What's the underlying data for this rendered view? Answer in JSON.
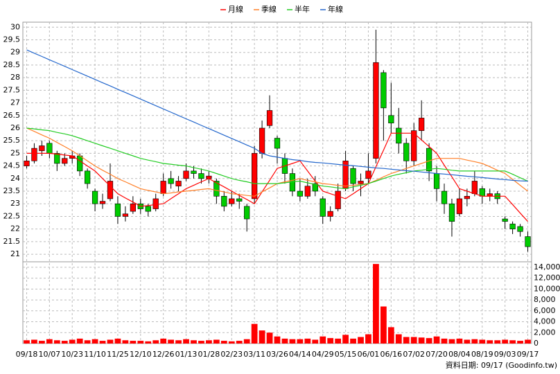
{
  "chart_data": {
    "type": "candlestick",
    "grid": true,
    "footer": "資料日期: 09/17   (Goodinfo.tw)",
    "categories": [
      "09/18",
      null,
      null,
      "10/07",
      null,
      null,
      "10/23",
      null,
      null,
      "11/10",
      null,
      null,
      "11/25",
      null,
      null,
      "12/10",
      null,
      null,
      "12/26",
      null,
      null,
      "01/13",
      null,
      null,
      "01/28",
      null,
      null,
      "02/23",
      null,
      null,
      "03/11",
      null,
      null,
      "03/26",
      null,
      null,
      "04/14",
      null,
      null,
      "04/29",
      null,
      null,
      "05/15",
      null,
      null,
      "06/01",
      null,
      null,
      "06/16",
      null,
      null,
      "07/02",
      null,
      null,
      "07/20",
      null,
      null,
      "08/04",
      null,
      null,
      "08/19",
      null,
      null,
      "09/03",
      null,
      null,
      "09/17"
    ],
    "open": [
      24.5,
      24.7,
      25.1,
      25.4,
      25.0,
      24.6,
      24.8,
      24.9,
      24.3,
      23.5,
      23.0,
      23.2,
      23.0,
      22.5,
      22.7,
      23.0,
      22.9,
      22.8,
      23.4,
      24.0,
      23.7,
      24.0,
      24.3,
      24.2,
      24.0,
      23.9,
      23.3,
      23.0,
      23.2,
      22.9,
      23.2,
      25.0,
      26.1,
      25.6,
      24.8,
      24.2,
      23.5,
      23.3,
      23.8,
      23.2,
      22.5,
      22.8,
      23.6,
      24.4,
      23.8,
      24.0,
      24.8,
      28.2,
      26.5,
      26.0,
      25.4,
      24.7,
      25.9,
      25.2,
      24.2,
      23.5,
      23.0,
      22.6,
      23.2,
      23.4,
      23.6,
      23.3,
      23.4,
      22.4,
      22.2,
      22.1,
      21.7
    ],
    "high": [
      24.9,
      25.4,
      25.5,
      25.5,
      25.1,
      25.0,
      25.1,
      25.0,
      24.4,
      23.6,
      23.4,
      24.6,
      23.3,
      22.9,
      23.3,
      23.2,
      23.0,
      23.4,
      24.2,
      24.3,
      24.1,
      24.6,
      24.5,
      24.4,
      24.3,
      24.0,
      23.5,
      23.5,
      23.4,
      23.0,
      25.3,
      26.3,
      27.3,
      25.7,
      25.0,
      24.4,
      24.0,
      24.0,
      24.1,
      23.3,
      22.9,
      23.8,
      25.1,
      24.5,
      24.2,
      25.0,
      29.9,
      28.3,
      27.8,
      26.8,
      25.6,
      26.2,
      27.1,
      25.4,
      24.5,
      23.8,
      23.2,
      23.6,
      23.6,
      24.3,
      23.7,
      23.6,
      23.5,
      22.5,
      22.3,
      22.2,
      21.9
    ],
    "low": [
      24.4,
      24.6,
      24.9,
      24.8,
      24.3,
      24.5,
      24.6,
      24.1,
      23.6,
      22.7,
      22.8,
      23.1,
      22.2,
      22.3,
      22.6,
      22.6,
      22.5,
      22.7,
      23.3,
      23.6,
      23.5,
      23.9,
      24.0,
      23.8,
      23.8,
      23.0,
      22.7,
      22.9,
      22.8,
      21.9,
      23.0,
      24.8,
      26.0,
      24.6,
      23.8,
      23.3,
      23.1,
      23.2,
      23.3,
      22.2,
      22.3,
      22.7,
      23.5,
      23.5,
      23.3,
      23.8,
      24.6,
      25.5,
      25.8,
      25.0,
      24.2,
      24.5,
      25.5,
      23.9,
      23.1,
      22.6,
      21.7,
      22.5,
      22.9,
      23.3,
      23.0,
      23.1,
      23.0,
      22.0,
      21.8,
      21.7,
      21.1
    ],
    "close": [
      24.7,
      25.2,
      25.3,
      25.0,
      24.6,
      24.8,
      24.9,
      24.3,
      23.8,
      23.0,
      23.1,
      23.9,
      22.5,
      22.6,
      23.0,
      22.8,
      22.7,
      23.2,
      23.9,
      23.8,
      23.9,
      24.3,
      24.2,
      24.0,
      24.1,
      23.3,
      22.9,
      23.2,
      23.1,
      22.4,
      25.0,
      26.0,
      26.7,
      25.2,
      24.2,
      23.5,
      23.3,
      23.7,
      23.5,
      22.5,
      22.7,
      23.5,
      24.7,
      23.8,
      23.9,
      24.3,
      28.6,
      26.8,
      26.2,
      25.4,
      24.7,
      25.9,
      26.4,
      24.3,
      23.6,
      23.0,
      22.3,
      23.2,
      23.3,
      23.9,
      23.3,
      23.4,
      23.2,
      22.3,
      22.0,
      21.9,
      21.3
    ],
    "up_color": "#ff0000",
    "down_color": "#00cc00",
    "ylim": [
      20.7,
      30.2
    ],
    "yticks": [
      21,
      21.5,
      22,
      22.5,
      23,
      23.5,
      24,
      24.5,
      25,
      25.5,
      26,
      26.5,
      27,
      27.5,
      28,
      28.5,
      29,
      29.5,
      30
    ],
    "series": [
      {
        "name": "月線",
        "color": "#ff0000",
        "values": [
          25.0,
          25.0,
          25.0,
          25.0,
          24.97,
          24.93,
          24.9,
          24.7,
          24.5,
          24.3,
          24.0,
          23.7,
          23.4,
          23.23,
          23.07,
          22.9,
          22.93,
          22.97,
          23.0,
          23.2,
          23.4,
          23.6,
          23.73,
          23.87,
          24.0,
          23.83,
          23.67,
          23.5,
          23.33,
          23.17,
          23.0,
          23.47,
          23.93,
          24.4,
          24.5,
          24.6,
          24.7,
          24.3,
          23.9,
          23.5,
          23.4,
          23.3,
          23.2,
          23.4,
          23.6,
          23.8,
          24.47,
          25.13,
          25.8,
          25.8,
          25.8,
          25.8,
          25.53,
          25.27,
          25.0,
          24.53,
          24.07,
          23.6,
          23.5,
          23.4,
          23.3,
          23.3,
          23.3,
          23.3,
          22.97,
          22.63,
          22.3
        ]
      },
      {
        "name": "季線",
        "color": "#ff7f27",
        "values": [
          26.0,
          25.87,
          25.73,
          25.6,
          25.43,
          25.27,
          25.1,
          24.9,
          24.7,
          24.5,
          24.33,
          24.17,
          24.0,
          23.87,
          23.73,
          23.6,
          23.53,
          23.47,
          23.4,
          23.43,
          23.47,
          23.5,
          23.53,
          23.57,
          23.6,
          23.53,
          23.47,
          23.4,
          23.37,
          23.33,
          23.3,
          23.47,
          23.63,
          23.8,
          23.87,
          23.93,
          24.0,
          23.93,
          23.87,
          23.8,
          23.77,
          23.73,
          23.7,
          23.73,
          23.77,
          23.8,
          23.93,
          24.07,
          24.2,
          24.3,
          24.4,
          24.5,
          24.6,
          24.7,
          24.8,
          24.8,
          24.8,
          24.8,
          24.73,
          24.67,
          24.6,
          24.47,
          24.33,
          24.2,
          23.97,
          23.73,
          23.5
        ]
      },
      {
        "name": "半年",
        "color": "#22cc22",
        "values": [
          26.0,
          25.97,
          25.93,
          25.9,
          25.83,
          25.77,
          25.7,
          25.6,
          25.5,
          25.4,
          25.3,
          25.2,
          25.1,
          25.0,
          24.9,
          24.8,
          24.73,
          24.67,
          24.6,
          24.57,
          24.53,
          24.5,
          24.43,
          24.37,
          24.3,
          24.2,
          24.1,
          24.0,
          23.93,
          23.87,
          23.8,
          23.8,
          23.8,
          23.8,
          23.83,
          23.87,
          23.9,
          23.83,
          23.77,
          23.7,
          23.67,
          23.63,
          23.6,
          23.67,
          23.73,
          23.8,
          23.9,
          24.0,
          24.1,
          24.17,
          24.23,
          24.3,
          24.33,
          24.37,
          24.4,
          24.37,
          24.33,
          24.3,
          24.3,
          24.3,
          24.3,
          24.3,
          24.3,
          24.3,
          24.17,
          24.03,
          23.9
        ]
      },
      {
        "name": "年線",
        "color": "#2266cc",
        "values": [
          29.1,
          28.97,
          28.84,
          28.71,
          28.58,
          28.45,
          28.32,
          28.19,
          28.06,
          27.93,
          27.8,
          27.67,
          27.54,
          27.41,
          27.28,
          27.15,
          27.02,
          26.89,
          26.76,
          26.63,
          26.5,
          26.37,
          26.24,
          26.11,
          25.98,
          25.85,
          25.72,
          25.59,
          25.46,
          25.33,
          25.2,
          25.0,
          24.9,
          24.85,
          24.8,
          24.75,
          24.72,
          24.67,
          24.64,
          24.62,
          24.59,
          24.56,
          24.53,
          24.51,
          24.48,
          24.45,
          24.42,
          24.4,
          24.37,
          24.34,
          24.31,
          24.29,
          24.26,
          24.23,
          24.2,
          24.18,
          24.15,
          24.12,
          24.09,
          24.07,
          24.04,
          24.01,
          23.98,
          23.96,
          23.93,
          23.91,
          23.9
        ]
      }
    ],
    "volume": {
      "color": "#ff0000",
      "ylim": [
        0,
        15000
      ],
      "yticks": [
        0,
        {
          "value": 2000,
          "label": "2,000"
        },
        {
          "value": 4000,
          "label": "4,000"
        },
        {
          "value": 6000,
          "label": "6,000"
        },
        {
          "value": 8000,
          "label": "8,000"
        },
        {
          "value": 10000,
          "label": "10,000"
        },
        {
          "value": 12000,
          "label": "12,000"
        },
        {
          "value": 14000,
          "label": "14,000"
        }
      ],
      "values": [
        600,
        700,
        500,
        800,
        600,
        500,
        700,
        900,
        600,
        800,
        500,
        700,
        900,
        600,
        500,
        500,
        400,
        600,
        900,
        700,
        600,
        800,
        600,
        500,
        600,
        700,
        500,
        400,
        500,
        800,
        3600,
        2400,
        2000,
        1300,
        900,
        800,
        800,
        900,
        700,
        1300,
        1000,
        900,
        1600,
        900,
        1200,
        1700,
        14600,
        6800,
        3000,
        1700,
        1200,
        1200,
        1100,
        1000,
        1300,
        900,
        800,
        900,
        700,
        800,
        700,
        600,
        600,
        700,
        600,
        500,
        700
      ]
    }
  }
}
